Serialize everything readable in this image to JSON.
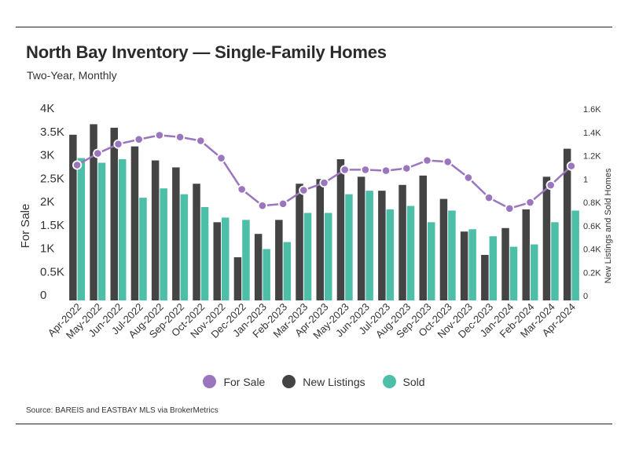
{
  "header": {
    "title": "North Bay Inventory — Single-Family Homes",
    "subtitle": "Two-Year, Monthly"
  },
  "footer": {
    "source": "Source:  BAREIS and EASTBAY MLS via BrokerMetrics"
  },
  "colors": {
    "for_sale": "#9b76bf",
    "new_listings": "#444444",
    "sold": "#4dbfa8"
  },
  "chart_data": {
    "type": "bar",
    "title": "North Bay Inventory — Single-Family Homes",
    "subtitle": "Two-Year, Monthly",
    "categories": [
      "Apr-2022",
      "May-2022",
      "Jun-2022",
      "Jul-2022",
      "Aug-2022",
      "Sep-2022",
      "Oct-2022",
      "Nov-2022",
      "Dec-2022",
      "Jan-2023",
      "Feb-2023",
      "Mar-2023",
      "Apr-2023",
      "May-2023",
      "Jun-2023",
      "Jul-2023",
      "Aug-2023",
      "Sep-2023",
      "Oct-2023",
      "Nov-2023",
      "Dec-2023",
      "Jan-2024",
      "Feb-2024",
      "Mar-2024",
      "Apr-2024"
    ],
    "ylabel": "For Sale",
    "y2label": "New Listings and Sold Homes",
    "ylim": [
      0,
      4000
    ],
    "y2lim": [
      0,
      1600
    ],
    "yticks": [
      "0",
      "0.5K",
      "1K",
      "1.5K",
      "2K",
      "2.5K",
      "3K",
      "3.5K",
      "4K"
    ],
    "y2ticks": [
      "0",
      "0.2K",
      "0.4K",
      "0.6K",
      "0.8K",
      "1",
      "1.2K",
      "1.4K",
      "1.6K"
    ],
    "legend_position": "bottom",
    "grid": false,
    "series": [
      {
        "name": "For Sale",
        "type": "line",
        "axis": "left",
        "values": [
          2900,
          3150,
          3350,
          3450,
          3540,
          3500,
          3420,
          3050,
          2380,
          2030,
          2070,
          2360,
          2520,
          2800,
          2800,
          2780,
          2830,
          3000,
          2970,
          2630,
          2200,
          1970,
          2100,
          2470,
          2880
        ]
      },
      {
        "name": "New Listings",
        "type": "bar",
        "axis": "right",
        "values": [
          1420,
          1510,
          1480,
          1320,
          1200,
          1140,
          1000,
          670,
          370,
          570,
          690,
          1000,
          1040,
          1210,
          1060,
          940,
          990,
          1070,
          870,
          590,
          390,
          620,
          780,
          1060,
          1300
        ]
      },
      {
        "name": "Sold",
        "type": "bar",
        "axis": "right",
        "values": [
          1220,
          1180,
          1210,
          880,
          960,
          910,
          800,
          710,
          690,
          440,
          500,
          750,
          750,
          910,
          940,
          780,
          810,
          670,
          770,
          610,
          550,
          460,
          480,
          670,
          770
        ]
      }
    ]
  }
}
